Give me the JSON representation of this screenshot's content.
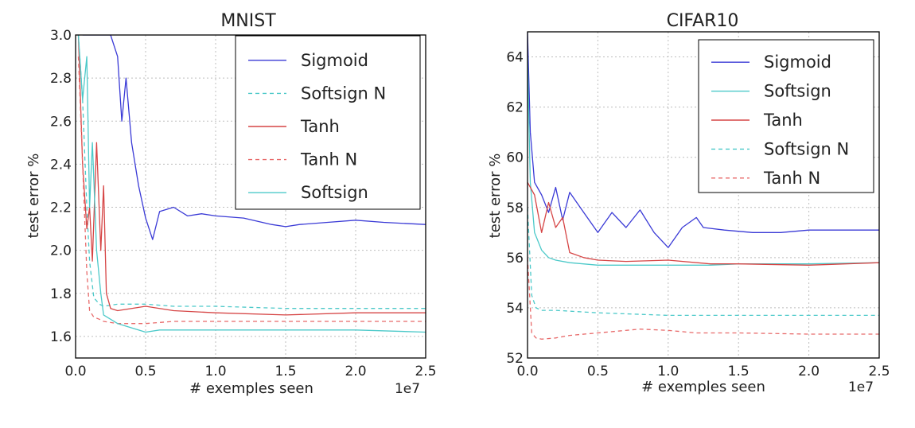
{
  "chart_data": [
    {
      "type": "line",
      "title": "MNIST",
      "xlabel": "# exemples seen",
      "ylabel": "test error %",
      "x_offset_label": "1e7",
      "xlim": [
        0,
        2.5
      ],
      "ylim": [
        1.5,
        3.0
      ],
      "xticks": [
        "0.0",
        "0.5",
        "1.0",
        "1.5",
        "2.0",
        "2.5"
      ],
      "yticks": [
        "1.6",
        "1.8",
        "2.0",
        "2.2",
        "2.4",
        "2.6",
        "2.8",
        "3.0"
      ],
      "grid": true,
      "legend_position": "top-right",
      "series": [
        {
          "name": "Sigmoid",
          "color": "#3a3ad6",
          "dash": "solid",
          "x": [
            0.05,
            0.1,
            0.15,
            0.2,
            0.25,
            0.3,
            0.33,
            0.36,
            0.4,
            0.45,
            0.5,
            0.55,
            0.6,
            0.7,
            0.8,
            0.9,
            1.0,
            1.2,
            1.4,
            1.5,
            1.6,
            1.8,
            2.0,
            2.2,
            2.5
          ],
          "y": [
            3.0,
            3.0,
            3.0,
            3.0,
            3.0,
            2.9,
            2.6,
            2.8,
            2.5,
            2.3,
            2.15,
            2.05,
            2.18,
            2.2,
            2.16,
            2.17,
            2.16,
            2.15,
            2.12,
            2.11,
            2.12,
            2.13,
            2.14,
            2.13,
            2.12
          ]
        },
        {
          "name": "Softsign N",
          "color": "#4cc9c9",
          "dash": "dashed",
          "x": [
            0.02,
            0.05,
            0.08,
            0.1,
            0.13,
            0.17,
            0.2,
            0.3,
            0.5,
            0.7,
            1.0,
            1.5,
            2.0,
            2.5
          ],
          "y": [
            3.0,
            2.7,
            2.2,
            1.95,
            1.78,
            1.75,
            1.74,
            1.75,
            1.75,
            1.74,
            1.74,
            1.73,
            1.73,
            1.73
          ]
        },
        {
          "name": "Tanh",
          "color": "#d64545",
          "dash": "solid",
          "x": [
            0.02,
            0.05,
            0.08,
            0.1,
            0.12,
            0.15,
            0.18,
            0.2,
            0.22,
            0.25,
            0.3,
            0.5,
            0.7,
            1.0,
            1.5,
            2.0,
            2.5
          ],
          "y": [
            3.0,
            2.4,
            2.1,
            2.2,
            1.95,
            2.5,
            2.0,
            2.3,
            1.8,
            1.73,
            1.72,
            1.74,
            1.72,
            1.71,
            1.7,
            1.71,
            1.71
          ]
        },
        {
          "name": "Tanh N",
          "color": "#e86a6a",
          "dash": "dashed",
          "x": [
            0.02,
            0.05,
            0.08,
            0.1,
            0.13,
            0.17,
            0.2,
            0.3,
            0.5,
            0.7,
            1.0,
            1.5,
            2.0,
            2.5
          ],
          "y": [
            2.9,
            2.4,
            1.9,
            1.72,
            1.69,
            1.68,
            1.67,
            1.66,
            1.66,
            1.67,
            1.67,
            1.67,
            1.67,
            1.67
          ]
        },
        {
          "name": "Softsign",
          "color": "#4cc9c9",
          "dash": "solid",
          "x": [
            0.02,
            0.05,
            0.08,
            0.1,
            0.12,
            0.15,
            0.18,
            0.2,
            0.3,
            0.4,
            0.5,
            0.6,
            0.8,
            1.0,
            1.5,
            2.0,
            2.5
          ],
          "y": [
            3.0,
            2.7,
            2.9,
            2.2,
            2.5,
            2.0,
            1.8,
            1.7,
            1.66,
            1.64,
            1.62,
            1.63,
            1.63,
            1.63,
            1.63,
            1.63,
            1.62
          ]
        }
      ]
    },
    {
      "type": "line",
      "title": "CIFAR10",
      "xlabel": "# exemples seen",
      "ylabel": "test error %",
      "x_offset_label": "1e7",
      "xlim": [
        0,
        2.5
      ],
      "ylim": [
        52,
        65
      ],
      "xticks": [
        "0.0",
        "0.5",
        "1.0",
        "1.5",
        "2.0",
        "2.5"
      ],
      "yticks": [
        "52",
        "54",
        "56",
        "58",
        "60",
        "62",
        "64"
      ],
      "grid": true,
      "legend_position": "top-right",
      "series": [
        {
          "name": "Sigmoid",
          "color": "#3a3ad6",
          "dash": "solid",
          "x": [
            0.0,
            0.02,
            0.05,
            0.1,
            0.15,
            0.2,
            0.25,
            0.3,
            0.4,
            0.5,
            0.6,
            0.7,
            0.8,
            0.9,
            1.0,
            1.1,
            1.2,
            1.25,
            1.4,
            1.6,
            1.8,
            2.0,
            2.2,
            2.5
          ],
          "y": [
            65,
            61,
            59,
            58.5,
            57.8,
            58.8,
            57.5,
            58.6,
            57.8,
            57.0,
            57.8,
            57.2,
            57.9,
            57.0,
            56.4,
            57.2,
            57.6,
            57.2,
            57.1,
            57.0,
            57.0,
            57.1,
            57.1,
            57.1
          ]
        },
        {
          "name": "Softsign",
          "color": "#4cc9c9",
          "dash": "solid",
          "x": [
            0.0,
            0.02,
            0.05,
            0.1,
            0.15,
            0.2,
            0.3,
            0.5,
            0.7,
            1.0,
            1.3,
            1.5,
            2.0,
            2.5
          ],
          "y": [
            64,
            59,
            57,
            56.3,
            56.0,
            55.9,
            55.8,
            55.7,
            55.7,
            55.7,
            55.7,
            55.75,
            55.75,
            55.8
          ]
        },
        {
          "name": "Tanh",
          "color": "#d64545",
          "dash": "solid",
          "x": [
            0.0,
            0.05,
            0.1,
            0.15,
            0.2,
            0.25,
            0.3,
            0.4,
            0.5,
            0.7,
            1.0,
            1.3,
            1.5,
            2.0,
            2.5
          ],
          "y": [
            59,
            58.5,
            57.0,
            58.2,
            57.2,
            57.6,
            56.2,
            56.0,
            55.9,
            55.85,
            55.9,
            55.75,
            55.75,
            55.7,
            55.8
          ]
        },
        {
          "name": "Softsign N",
          "color": "#4cc9c9",
          "dash": "dashed",
          "x": [
            0.0,
            0.03,
            0.06,
            0.1,
            0.2,
            0.5,
            1.0,
            1.5,
            2.0,
            2.5
          ],
          "y": [
            58,
            54.5,
            54.0,
            53.9,
            53.9,
            53.8,
            53.7,
            53.7,
            53.7,
            53.7
          ]
        },
        {
          "name": "Tanh N",
          "color": "#e86a6a",
          "dash": "dashed",
          "x": [
            0.0,
            0.03,
            0.06,
            0.1,
            0.2,
            0.3,
            0.5,
            0.8,
            1.0,
            1.2,
            1.5,
            2.0,
            2.5
          ],
          "y": [
            56,
            53.0,
            52.8,
            52.75,
            52.8,
            52.9,
            53.0,
            53.15,
            53.1,
            53.0,
            53.0,
            52.95,
            52.95
          ]
        }
      ]
    }
  ]
}
